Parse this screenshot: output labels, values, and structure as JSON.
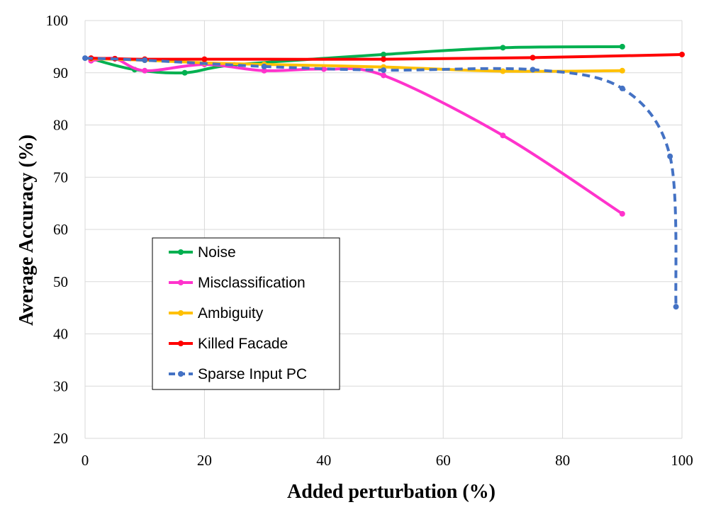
{
  "chart_data": {
    "type": "line",
    "title": "",
    "xlabel": "Added perturbation (%)",
    "ylabel": "Average Accuracy (%)",
    "xlim": [
      0,
      100
    ],
    "ylim": [
      20,
      100
    ],
    "xticks": [
      0,
      20,
      40,
      60,
      80,
      100
    ],
    "yticks": [
      20,
      30,
      40,
      50,
      60,
      70,
      80,
      90,
      100
    ],
    "grid": true,
    "legend_position": "lower-left",
    "series": [
      {
        "name": "Noise",
        "color": "#00b050",
        "dashed": false,
        "x": [
          1,
          8.3,
          16.7,
          25,
          50,
          70,
          90
        ],
        "y": [
          92.7,
          90.6,
          90.0,
          91.5,
          93.5,
          94.8,
          95.0
        ]
      },
      {
        "name": "Misclassification",
        "color": "#ff33cc",
        "dashed": false,
        "x": [
          1,
          5,
          10,
          20,
          30,
          40,
          50,
          70,
          90
        ],
        "y": [
          92.3,
          92.7,
          90.4,
          91.6,
          90.4,
          90.7,
          89.5,
          78.0,
          63.0
        ]
      },
      {
        "name": "Ambiguity",
        "color": "#ffc000",
        "dashed": false,
        "x": [
          1,
          10,
          20,
          30,
          50,
          70,
          90
        ],
        "y": [
          92.7,
          92.4,
          91.9,
          91.6,
          91.1,
          90.3,
          90.4
        ]
      },
      {
        "name": "Killed Facade",
        "color": "#ff0000",
        "dashed": false,
        "x": [
          1,
          5,
          10,
          20,
          50,
          75,
          100
        ],
        "y": [
          92.8,
          92.7,
          92.6,
          92.6,
          92.6,
          92.9,
          93.5
        ]
      },
      {
        "name": "Sparse Input PC",
        "color": "#4472c4",
        "dashed": true,
        "x": [
          0,
          10,
          30,
          50,
          75,
          90,
          98,
          99
        ],
        "y": [
          92.8,
          92.4,
          91.2,
          90.5,
          90.6,
          87.0,
          74.0,
          45.2
        ]
      }
    ]
  }
}
